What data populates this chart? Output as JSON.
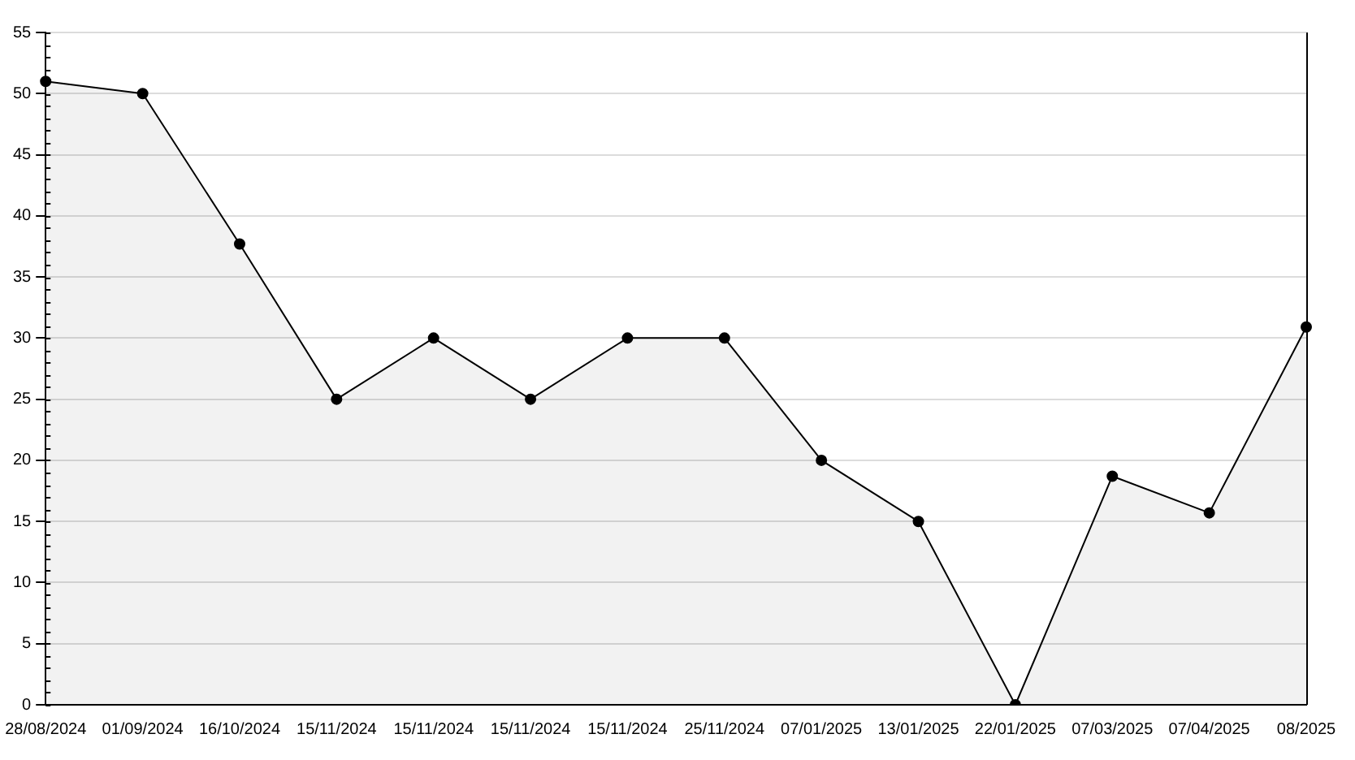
{
  "chart_data": {
    "type": "area",
    "categories": [
      "28/08/2024",
      "01/09/2024",
      "16/10/2024",
      "15/11/2024",
      "15/11/2024",
      "15/11/2024",
      "15/11/2024",
      "25/11/2024",
      "07/01/2025",
      "13/01/2025",
      "22/01/2025",
      "07/03/2025",
      "07/04/2025",
      "08/2025"
    ],
    "series": [
      {
        "color": "#000000",
        "values": [
          51,
          50,
          37.7,
          25,
          30,
          25,
          30,
          30,
          20,
          15,
          0,
          18.7,
          15.7,
          30.9
        ]
      }
    ],
    "ylim": [
      0,
      55
    ],
    "yticks": [
      0,
      5,
      10,
      15,
      20,
      25,
      30,
      35,
      40,
      45,
      50,
      55
    ],
    "grid": "y",
    "legend": false,
    "marker": "circle"
  }
}
